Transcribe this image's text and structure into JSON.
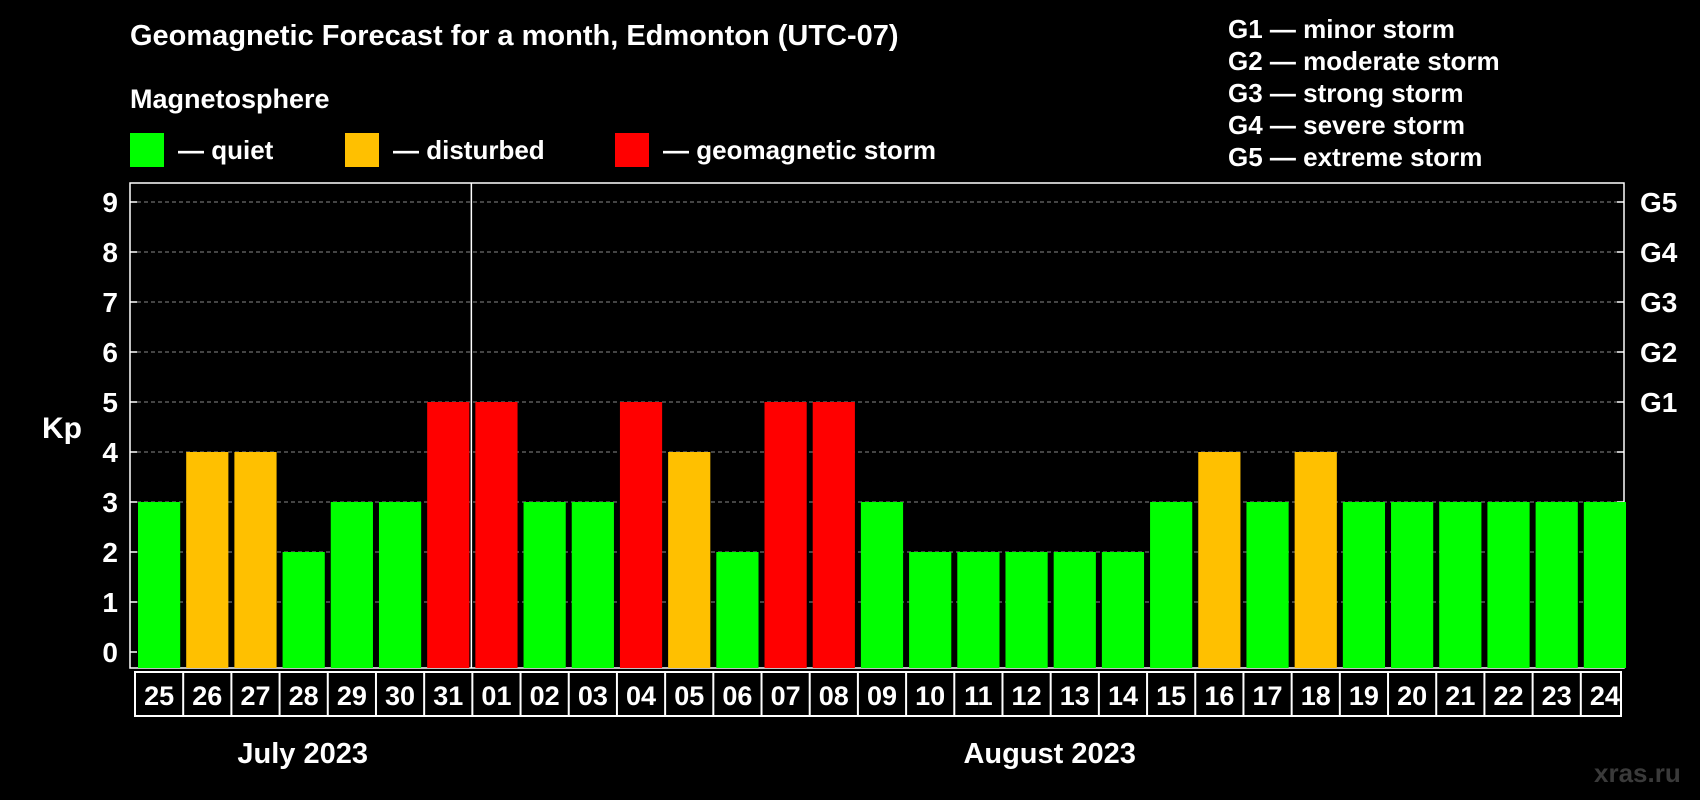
{
  "title": "Geomagnetic Forecast for a month, Edmonton (UTC-07)",
  "magnetosphere": {
    "title": "Magnetosphere",
    "items": [
      {
        "label": "— quiet",
        "color": "#00ff00"
      },
      {
        "label": "— disturbed",
        "color": "#ffc000"
      },
      {
        "label": "— geomagnetic storm",
        "color": "#ff0000"
      }
    ]
  },
  "g_scale": [
    "G1 — minor storm",
    "G2 — moderate storm",
    "G3 — strong storm",
    "G4 — severe storm",
    "G5 — extreme storm"
  ],
  "watermark": "xras.ru",
  "chart_data": {
    "type": "bar",
    "ylabel": "Kp",
    "ylim": [
      0,
      9
    ],
    "yticks": [
      "0",
      "1",
      "2",
      "3",
      "4",
      "5",
      "6",
      "7",
      "8",
      "9"
    ],
    "right_ticks": [
      {
        "kp": 5,
        "label": "G1"
      },
      {
        "kp": 6,
        "label": "G2"
      },
      {
        "kp": 7,
        "label": "G3"
      },
      {
        "kp": 8,
        "label": "G4"
      },
      {
        "kp": 9,
        "label": "G5"
      }
    ],
    "grid": true,
    "categories": [
      "25",
      "26",
      "27",
      "28",
      "29",
      "30",
      "31",
      "01",
      "02",
      "03",
      "04",
      "05",
      "06",
      "07",
      "08",
      "09",
      "10",
      "11",
      "12",
      "13",
      "14",
      "15",
      "16",
      "17",
      "18",
      "19",
      "20",
      "21",
      "22",
      "23",
      "24"
    ],
    "values": [
      3,
      4,
      4,
      2,
      3,
      3,
      5,
      5,
      3,
      3,
      5,
      4,
      2,
      5,
      5,
      3,
      2,
      2,
      2,
      2,
      2,
      3,
      4,
      3,
      4,
      3,
      3,
      3,
      3,
      3,
      3
    ],
    "colors": {
      "quiet": "#00ff00",
      "disturbed": "#ffc000",
      "storm": "#ff0000"
    },
    "months": [
      {
        "label": "July 2023",
        "first": 0,
        "last": 6
      },
      {
        "label": "August 2023",
        "first": 7,
        "last": 30
      }
    ]
  }
}
